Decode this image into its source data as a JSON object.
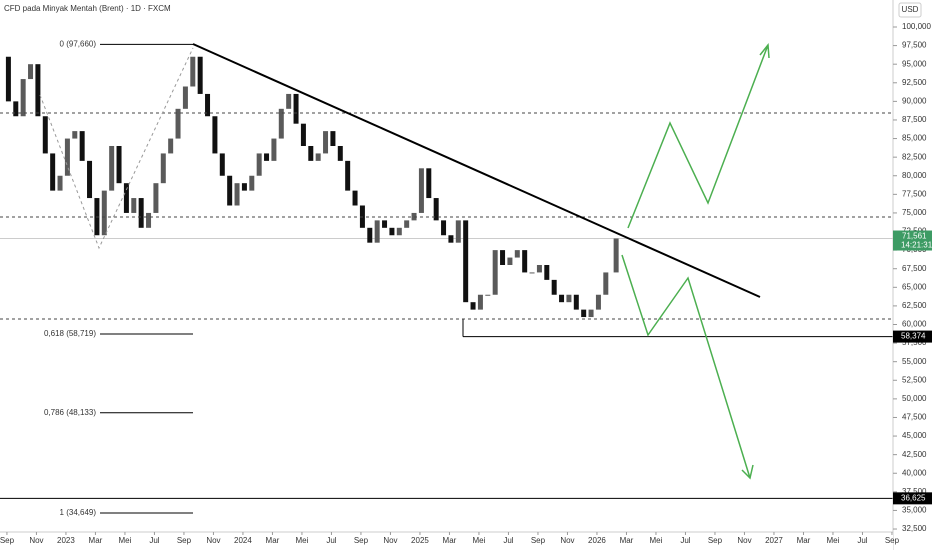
{
  "chart_data": {
    "type": "candlestick",
    "title": "CFD pada Minyak Mentah (Brent) · 1D · FXCM",
    "currency": "USD",
    "up_color": "#5a5a5a",
    "down_color": "#111111",
    "x": [
      -0.4,
      0.1,
      0.6,
      1.1,
      1.6,
      2.1,
      2.6,
      3.1,
      3.6,
      4.1,
      4.6,
      5.1,
      5.6,
      6.1,
      6.6,
      7.1,
      7.6,
      8.1,
      8.6,
      9.1,
      9.6,
      10.1,
      10.6,
      11.1,
      11.6,
      12.1,
      12.6,
      13.1,
      13.6,
      14.1,
      14.6,
      15.1,
      15.6,
      16.1,
      16.6,
      17.1,
      17.6,
      18.1,
      18.6,
      19.1,
      19.6,
      20.1,
      20.6,
      21.1,
      21.6,
      22.1,
      22.6,
      23.1,
      23.6,
      24.1,
      24.6,
      25.1,
      25.6,
      26.1,
      26.6,
      27.1,
      27.6,
      28.1,
      28.6,
      29.1,
      29.6,
      30.1,
      30.6,
      31.1,
      31.6,
      32.1,
      32.6,
      33.1,
      33.6,
      34.1,
      34.6,
      35.1,
      35.6,
      36.1,
      36.6,
      37.1,
      37.6,
      38.1,
      38.6,
      39.1,
      39.6,
      40.1,
      40.6,
      41.3
    ],
    "values": [
      96000,
      90000,
      88000,
      93000,
      95000,
      88000,
      83000,
      78000,
      80000,
      85000,
      86000,
      82000,
      77000,
      72000,
      78000,
      84000,
      79000,
      75000,
      77000,
      73000,
      75000,
      79000,
      83000,
      85000,
      89000,
      92000,
      96000,
      91000,
      88000,
      83000,
      80000,
      76000,
      79000,
      78000,
      80000,
      83000,
      82000,
      85000,
      89000,
      91000,
      87000,
      84000,
      82000,
      83000,
      86000,
      84000,
      82000,
      78000,
      76000,
      73000,
      71000,
      74000,
      73000,
      72000,
      73000,
      74000,
      75000,
      81000,
      77000,
      74000,
      72000,
      71000,
      74000,
      63000,
      62000,
      64000,
      64000,
      70000,
      68000,
      69000,
      70000,
      67000,
      67000,
      68000,
      66000,
      64000,
      63000,
      64000,
      62000,
      61000,
      62000,
      64000,
      67000,
      71561
    ],
    "last_price": {
      "value": 71561,
      "label": "71,561"
    },
    "countdown": "14:21:31",
    "levels": [
      {
        "value": 58374,
        "label": "58,374"
      },
      {
        "value": 36625,
        "label": "36,625"
      }
    ],
    "fib_levels": [
      {
        "value": 97660,
        "label": "0 (97,660)"
      },
      {
        "value": 58719,
        "label": "0,618 (58,719)"
      },
      {
        "value": 48133,
        "label": "0,786 (48,133)"
      },
      {
        "value": 34649,
        "label": "1 (34,649)"
      }
    ],
    "xlim": [
      -0.47,
      60.07
    ],
    "xticks": [
      {
        "value": 0,
        "label": "Sep"
      },
      {
        "value": 2,
        "label": "Nov"
      },
      {
        "value": 4,
        "label": "2023"
      },
      {
        "value": 6,
        "label": "Mar"
      },
      {
        "value": 8,
        "label": "Mei"
      },
      {
        "value": 10,
        "label": "Jul"
      },
      {
        "value": 12,
        "label": "Sep"
      },
      {
        "value": 14,
        "label": "Nov"
      },
      {
        "value": 16,
        "label": "2024"
      },
      {
        "value": 18,
        "label": "Mar"
      },
      {
        "value": 20,
        "label": "Mei"
      },
      {
        "value": 22,
        "label": "Jul"
      },
      {
        "value": 24,
        "label": "Sep"
      },
      {
        "value": 26,
        "label": "Nov"
      },
      {
        "value": 28,
        "label": "2025"
      },
      {
        "value": 30,
        "label": "Mar"
      },
      {
        "value": 32,
        "label": "Mei"
      },
      {
        "value": 34,
        "label": "Jul"
      },
      {
        "value": 36,
        "label": "Sep"
      },
      {
        "value": 38,
        "label": "Nov"
      },
      {
        "value": 40,
        "label": "2026"
      },
      {
        "value": 42,
        "label": "Mar"
      },
      {
        "value": 44,
        "label": "Mei"
      },
      {
        "value": 46,
        "label": "Jul"
      },
      {
        "value": 48,
        "label": "Sep"
      },
      {
        "value": 50,
        "label": "Nov"
      },
      {
        "value": 52,
        "label": "2027"
      },
      {
        "value": 54,
        "label": "Mar"
      },
      {
        "value": 56,
        "label": "Mei"
      },
      {
        "value": 58,
        "label": "Jul"
      },
      {
        "value": 60,
        "label": "Sep"
      }
    ],
    "ylim": [
      32100,
      103630
    ],
    "yticks": [
      {
        "value": 32500,
        "label": "32,500"
      },
      {
        "value": 35000,
        "label": "35,000"
      },
      {
        "value": 37500,
        "label": "37,500"
      },
      {
        "value": 40000,
        "label": "40,000"
      },
      {
        "value": 42500,
        "label": "42,500"
      },
      {
        "value": 45000,
        "label": "45,000"
      },
      {
        "value": 47500,
        "label": "47,500"
      },
      {
        "value": 50000,
        "label": "50,000"
      },
      {
        "value": 52500,
        "label": "52,500"
      },
      {
        "value": 55000,
        "label": "55,000"
      },
      {
        "value": 57500,
        "label": "57,500"
      },
      {
        "value": 60000,
        "label": "60,000"
      },
      {
        "value": 62500,
        "label": "62,500"
      },
      {
        "value": 65000,
        "label": "65,000"
      },
      {
        "value": 67500,
        "label": "67,500"
      },
      {
        "value": 70000,
        "label": "70,000"
      },
      {
        "value": 72500,
        "label": "72,500"
      },
      {
        "value": 75000,
        "label": "75,000"
      },
      {
        "value": 77500,
        "label": "77,500"
      },
      {
        "value": 80000,
        "label": "80,000"
      },
      {
        "value": 82500,
        "label": "82,500"
      },
      {
        "value": 85000,
        "label": "85,000"
      },
      {
        "value": 87500,
        "label": "87,500"
      },
      {
        "value": 90000,
        "label": "90,000"
      },
      {
        "value": 92500,
        "label": "92,500"
      },
      {
        "value": 95000,
        "label": "95,000"
      },
      {
        "value": 97500,
        "label": "97,500"
      },
      {
        "value": 100000,
        "label": "100,000"
      }
    ]
  }
}
